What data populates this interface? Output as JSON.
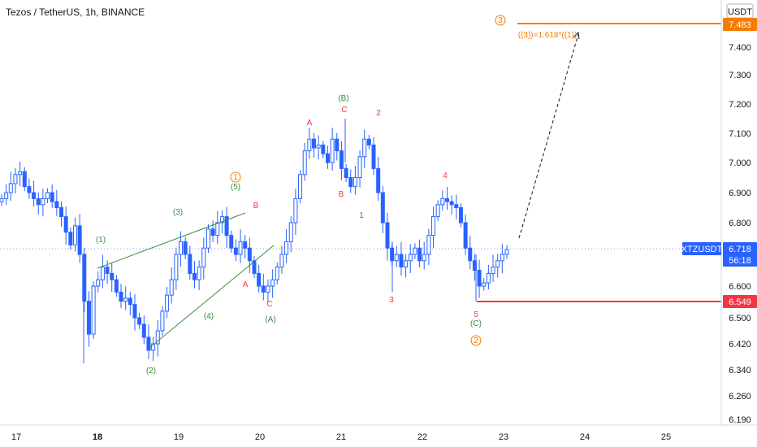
{
  "chart_data": {
    "type": "candlestick",
    "title": "Tezos / TetherUS, 1h, BINANCE",
    "currency": "USDT",
    "yticks": [
      "7.400",
      "7.300",
      "7.200",
      "7.100",
      "7.000",
      "6.900",
      "6.800",
      "6.600",
      "6.500",
      "6.420",
      "6.340",
      "6.260",
      "6.190"
    ],
    "xticks": [
      {
        "label": "17",
        "bold": false
      },
      {
        "label": "18",
        "bold": true
      },
      {
        "label": "19",
        "bold": false
      },
      {
        "label": "20",
        "bold": false
      },
      {
        "label": "21",
        "bold": false
      },
      {
        "label": "22",
        "bold": false
      },
      {
        "label": "23",
        "bold": false
      },
      {
        "label": "24",
        "bold": false
      },
      {
        "label": "25",
        "bold": false
      }
    ],
    "price_tags": {
      "symbol": "XTZUSDT",
      "last": {
        "value": "6.718",
        "countdown": "56:18",
        "color": "#2962ff"
      },
      "target": {
        "value": "7.483",
        "color": "#f57c00"
      },
      "stop": {
        "value": "6.549",
        "color": "#f23645"
      }
    },
    "fib_note": "((3))=1.618*((1))",
    "wave_labels": [
      {
        "text": "(1)",
        "color": "#388e3c"
      },
      {
        "text": "(2)",
        "color": "#388e3c"
      },
      {
        "text": "(3)",
        "color": "#388e3c"
      },
      {
        "text": "(4)",
        "color": "#388e3c"
      },
      {
        "text": "(5)",
        "color": "#388e3c"
      },
      {
        "text": "(A)",
        "color": "#388e3c"
      },
      {
        "text": "(B)",
        "color": "#388e3c"
      },
      {
        "text": "(C)",
        "color": "#388e3c"
      },
      {
        "text": "A",
        "color": "#f23645"
      },
      {
        "text": "B",
        "color": "#f23645"
      },
      {
        "text": "C",
        "color": "#f23645"
      },
      {
        "text": "A",
        "color": "#f23645"
      },
      {
        "text": "B",
        "color": "#f23645"
      },
      {
        "text": "C",
        "color": "#f23645"
      },
      {
        "text": "1",
        "color": "#f23645"
      },
      {
        "text": "2",
        "color": "#f23645"
      },
      {
        "text": "3",
        "color": "#f23645"
      },
      {
        "text": "4",
        "color": "#f23645"
      },
      {
        "text": "5",
        "color": "#f23645"
      },
      {
        "text": "1",
        "color": "#f57c00"
      },
      {
        "text": "2",
        "color": "#f57c00"
      },
      {
        "text": "3",
        "color": "#f57c00"
      }
    ],
    "candle_colors": {
      "up": "#2962ff",
      "down": "#2962ff"
    },
    "close_path": [
      6.88,
      6.9,
      6.93,
      6.96,
      6.97,
      6.92,
      6.9,
      6.88,
      6.86,
      6.88,
      6.9,
      6.87,
      6.85,
      6.82,
      6.77,
      6.73,
      6.79,
      6.7,
      6.55,
      6.45,
      6.6,
      6.62,
      6.66,
      6.64,
      6.62,
      6.58,
      6.55,
      6.56,
      6.54,
      6.5,
      6.48,
      6.44,
      6.4,
      6.42,
      6.46,
      6.52,
      6.57,
      6.62,
      6.7,
      6.74,
      6.7,
      6.64,
      6.62,
      6.66,
      6.72,
      6.78,
      6.76,
      6.8,
      6.82,
      6.76,
      6.72,
      6.7,
      6.74,
      6.72,
      6.68,
      6.64,
      6.6,
      6.58,
      6.6,
      6.62,
      6.66,
      6.7,
      6.74,
      6.8,
      6.88,
      6.96,
      7.04,
      7.08,
      7.05,
      7.06,
      7.03,
      7.0,
      7.08,
      7.04,
      6.98,
      6.95,
      6.92,
      6.95,
      7.02,
      7.08,
      7.06,
      6.98,
      6.9,
      6.8,
      6.72,
      6.68,
      6.7,
      6.66,
      6.68,
      6.7,
      6.72,
      6.68,
      6.7,
      6.76,
      6.82,
      6.86,
      6.88,
      6.87,
      6.86,
      6.85,
      6.8,
      6.72,
      6.68,
      6.65,
      6.6,
      6.61,
      6.64,
      6.66,
      6.68,
      6.7,
      6.715
    ]
  }
}
